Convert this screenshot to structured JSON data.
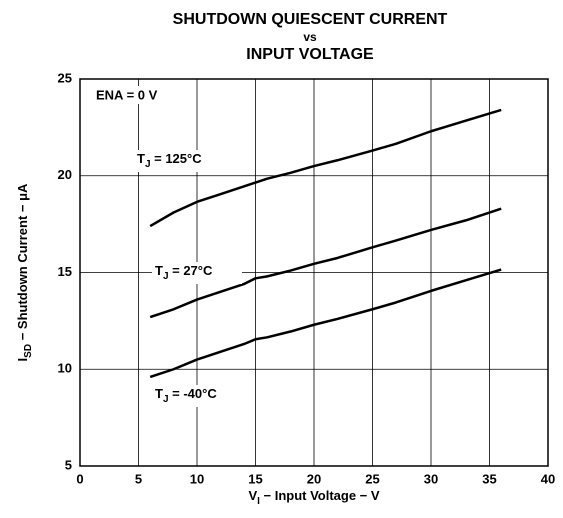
{
  "chart_data": {
    "type": "line",
    "title": [
      "SHUTDOWN QUIESCENT CURRENT",
      "vs",
      "INPUT VOLTAGE"
    ],
    "xlabel": {
      "main": "V",
      "sub": "I",
      "rest": " − Input Voltage − V"
    },
    "ylabel": {
      "main": "I",
      "sub": "SD",
      "rest": " − Shutdown Current − μA"
    },
    "annotation": "ENA = 0 V",
    "x": [
      6,
      8,
      10,
      12,
      14,
      15,
      16,
      18,
      20,
      22,
      25,
      27,
      30,
      33,
      36
    ],
    "series": [
      {
        "label": {
          "main": "T",
          "sub": "J",
          "rest": " = 125°C"
        },
        "color": "#000000",
        "values": [
          17.4,
          18.1,
          18.65,
          19.05,
          19.45,
          19.65,
          19.85,
          20.15,
          20.5,
          20.8,
          21.3,
          21.65,
          22.3,
          22.85,
          23.4
        ]
      },
      {
        "label": {
          "main": "T",
          "sub": "J",
          "rest": " = 27°C"
        },
        "color": "#000000",
        "values": [
          12.7,
          13.1,
          13.6,
          14.0,
          14.4,
          14.7,
          14.8,
          15.1,
          15.45,
          15.75,
          16.3,
          16.65,
          17.2,
          17.7,
          18.3
        ]
      },
      {
        "label": {
          "main": "T",
          "sub": "J",
          "rest": " = -40°C"
        },
        "color": "#000000",
        "values": [
          9.6,
          10.0,
          10.5,
          10.9,
          11.3,
          11.55,
          11.65,
          11.95,
          12.3,
          12.6,
          13.1,
          13.45,
          14.05,
          14.6,
          15.15
        ]
      }
    ],
    "xlim": [
      0,
      40
    ],
    "xticks": [
      0,
      5,
      10,
      15,
      20,
      25,
      30,
      35,
      40
    ],
    "ylim": [
      5,
      25
    ],
    "yticks": [
      5,
      10,
      15,
      20,
      25
    ],
    "grid": true
  }
}
